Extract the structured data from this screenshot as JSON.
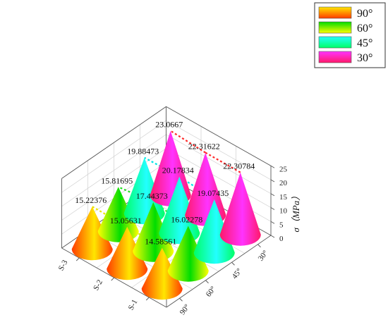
{
  "chart_data": {
    "type": "3d-cone-bar",
    "x_categories": [
      "S-1",
      "S-2",
      "S-3"
    ],
    "y_categories": [
      "90°",
      "60°",
      "45°",
      "30°"
    ],
    "z_label": "σ（MPa）",
    "z_ticks": [
      "0",
      "5",
      "10",
      "15",
      "20",
      "25"
    ],
    "zlim": [
      0,
      25
    ],
    "series": [
      {
        "name": "90°",
        "values": [
          14.58561,
          15.05631,
          15.22376
        ]
      },
      {
        "name": "60°",
        "values": [
          16.02278,
          17.44373,
          15.81695
        ]
      },
      {
        "name": "45°",
        "values": [
          19.07435,
          20.17834,
          19.88473
        ]
      },
      {
        "name": "30°",
        "values": [
          22.30784,
          22.31622,
          23.0667
        ]
      }
    ],
    "data_labels": {
      "90°": [
        "14.58561",
        "15.05631",
        "15.22376"
      ],
      "60°": [
        "16.02278",
        "17.44373",
        "15.81695"
      ],
      "45°": [
        "19.07435",
        "20.17834",
        "19.88473"
      ],
      "30°": [
        "22.30784",
        "22.31622",
        "23.0667"
      ]
    },
    "legend": {
      "placement": "top-right",
      "entries": [
        {
          "label": "90°",
          "colors": [
            "#ff3b00",
            "#ffe600"
          ]
        },
        {
          "label": "60°",
          "colors": [
            "#ffff00",
            "#00dd00"
          ]
        },
        {
          "label": "45°",
          "colors": [
            "#00ff66",
            "#22ffff"
          ]
        },
        {
          "label": "30°",
          "colors": [
            "#ff1a6a",
            "#ff33ff"
          ]
        }
      ]
    },
    "guide_colors": {
      "90°": "#e8e800",
      "60°": "#22dd22",
      "45°": "#00e5e5",
      "30°": "#ff2a2a"
    },
    "grid": true
  }
}
